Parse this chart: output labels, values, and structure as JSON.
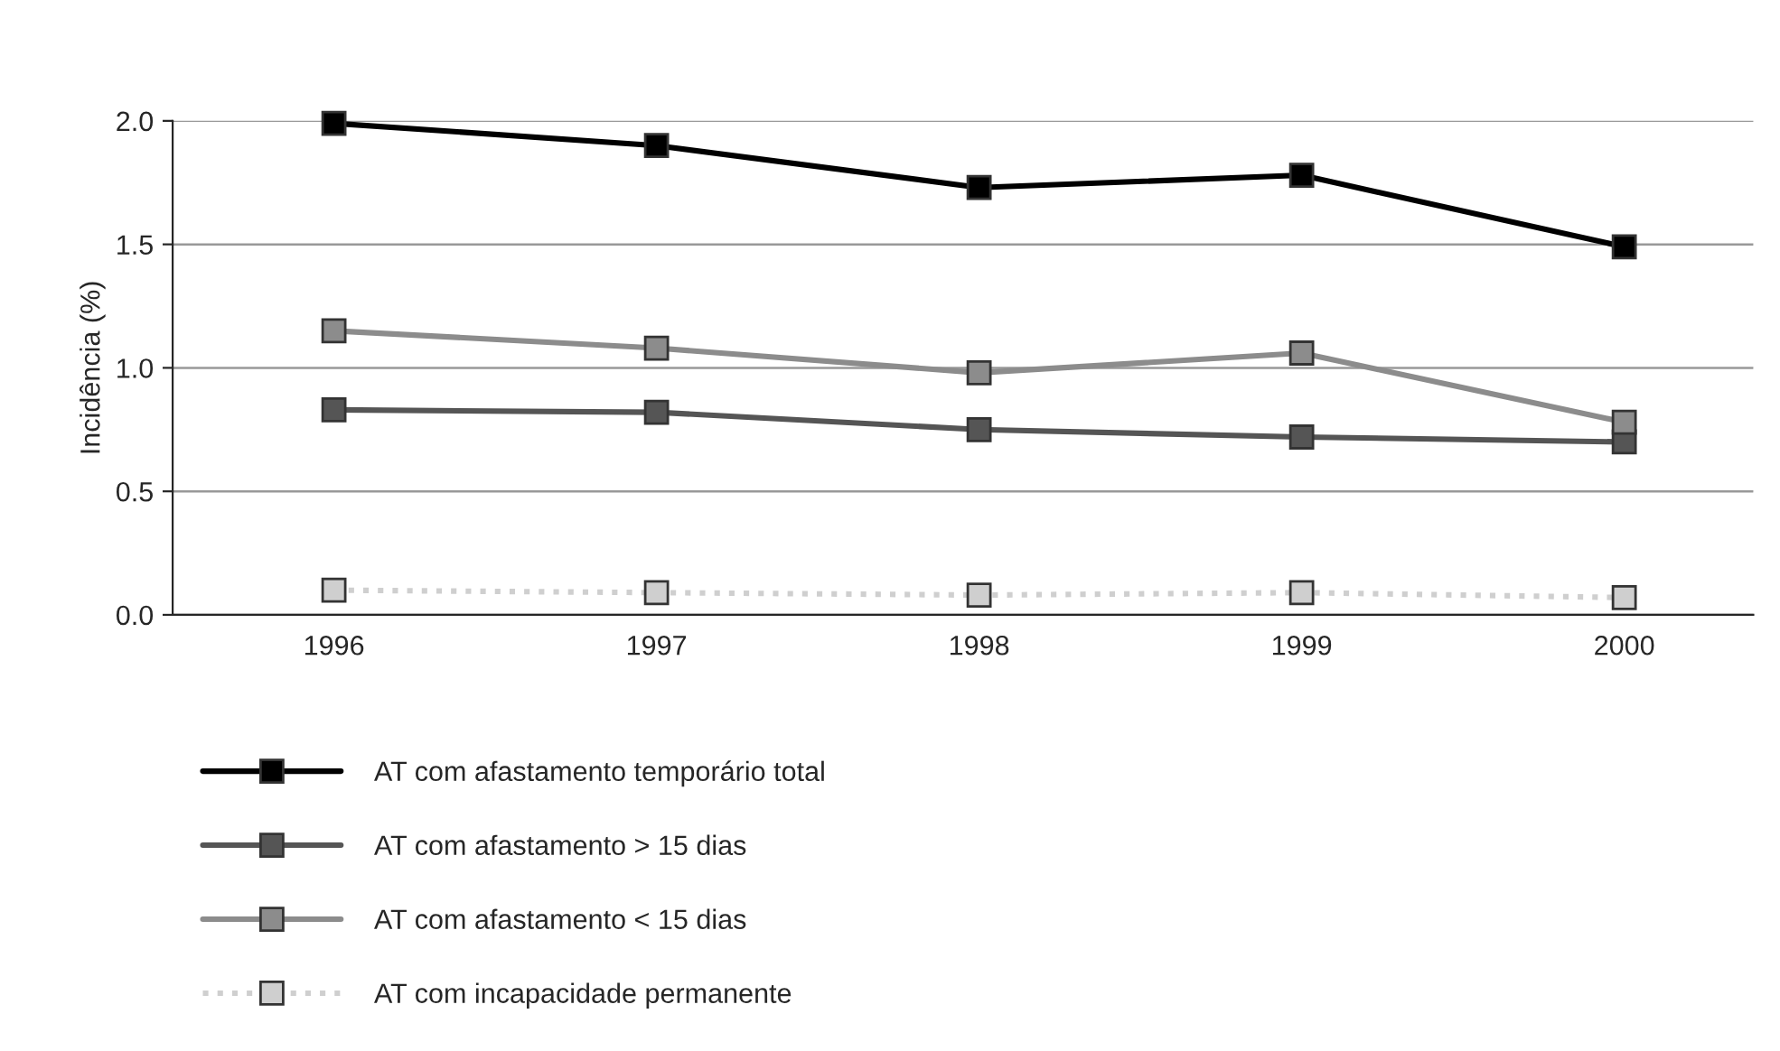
{
  "chart_data": {
    "type": "line",
    "ylabel": "Incidência (%)",
    "categories": [
      "1996",
      "1997",
      "1998",
      "1999",
      "2000"
    ],
    "series": [
      {
        "name": "AT com afastamento temporário total",
        "color": "#000000",
        "values": [
          1.99,
          1.9,
          1.73,
          1.78,
          1.49
        ]
      },
      {
        "name": "AT com afastamento > 15 dias",
        "color": "#555555",
        "values": [
          0.83,
          0.82,
          0.75,
          0.72,
          0.7
        ]
      },
      {
        "name": "AT com afastamento < 15 dias",
        "color": "#8c8c8c",
        "values": [
          1.15,
          1.08,
          0.98,
          1.06,
          0.78
        ]
      },
      {
        "name": "AT com incapacidade permanente",
        "color": "#cfcfcf",
        "values": [
          0.1,
          0.09,
          0.08,
          0.09,
          0.07
        ],
        "line_style": "dotted"
      }
    ],
    "ylim": [
      0,
      2.0
    ],
    "yticks": [
      {
        "value": 0,
        "label": "0.0"
      },
      {
        "value": 0.5,
        "label": "0.5"
      },
      {
        "value": 1.0,
        "label": "1.0"
      },
      {
        "value": 1.5,
        "label": "1.5"
      },
      {
        "value": 2.0,
        "label": "2.0"
      }
    ],
    "grid": "y",
    "legend": "bottom",
    "marker": "square",
    "line_style": "solid"
  }
}
